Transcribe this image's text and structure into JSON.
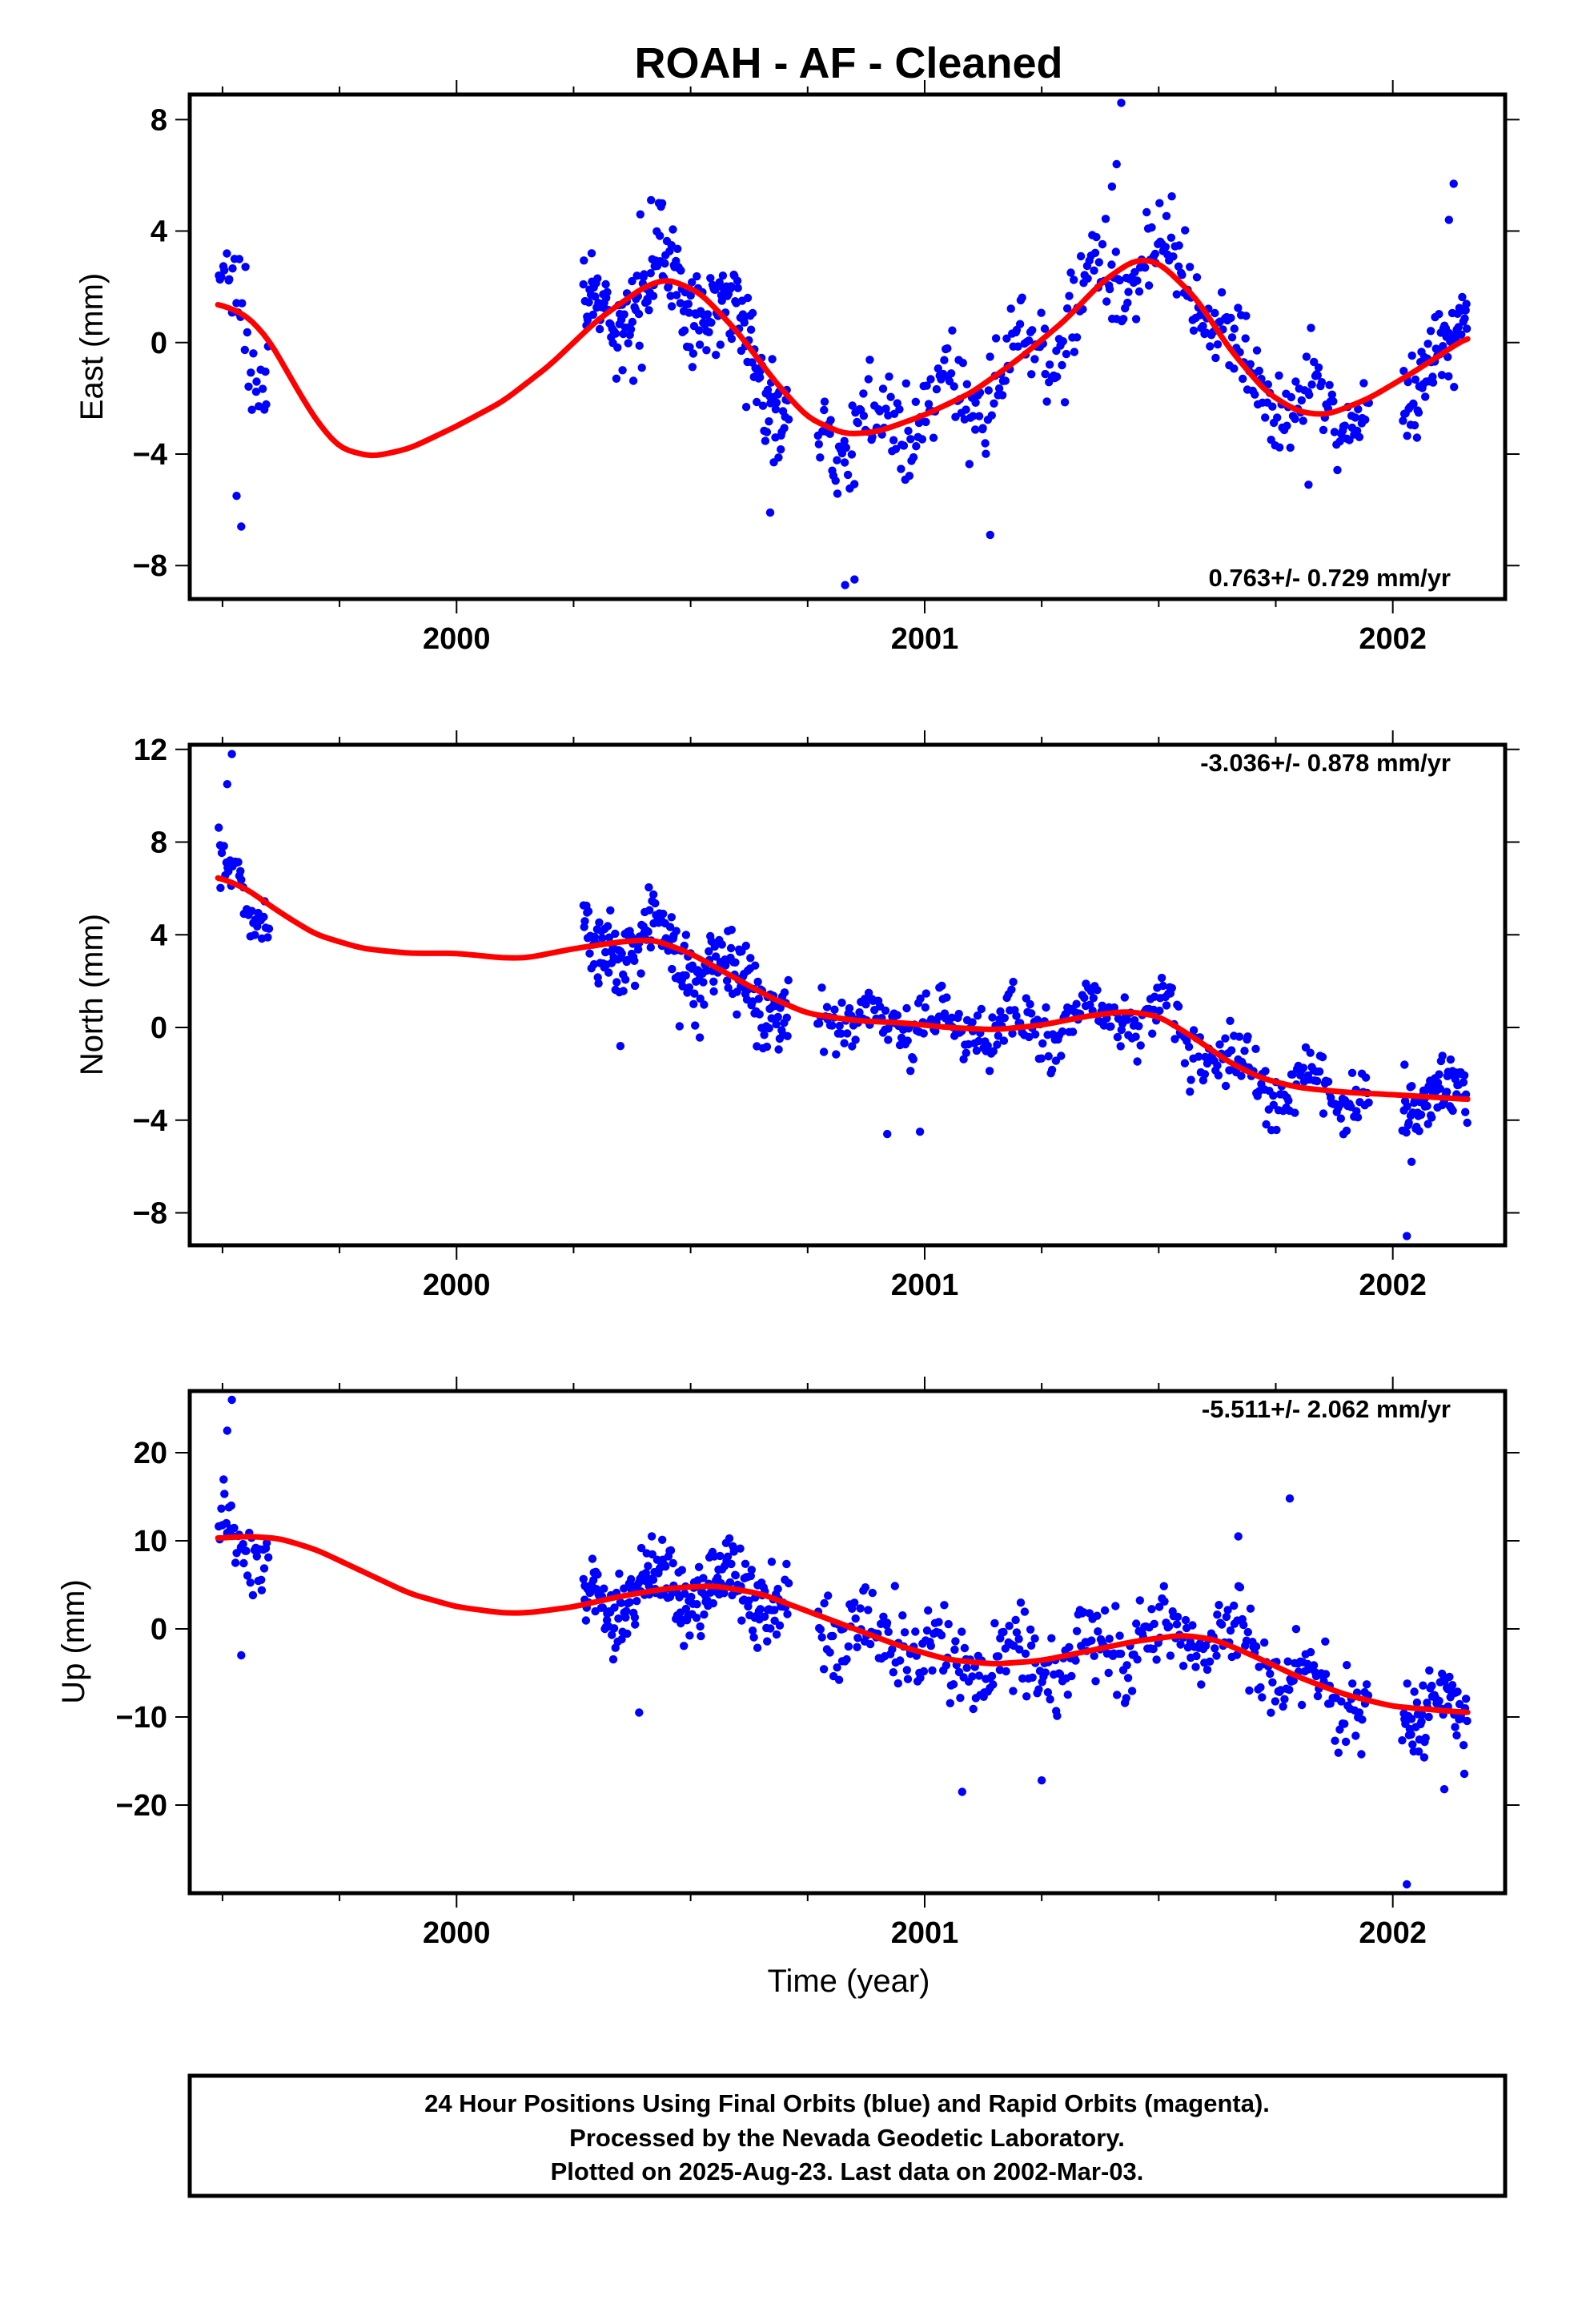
{
  "title": "ROAH  - AF - Cleaned",
  "xlabel": "Time (year)",
  "caption": [
    "24 Hour Positions Using Final Orbits (blue) and Rapid Orbits (magenta).",
    "Processed by the Nevada Geodetic Laboratory.",
    "Plotted on 2025-Aug-23. Last data on 2002-Mar-03."
  ],
  "colors": {
    "points": "#0000ff",
    "trend": "#ff0000",
    "frame": "#000000"
  },
  "chart_data": [
    {
      "type": "scatter",
      "ylabel": "East (mm)",
      "rate_text": "0.763+/- 0.729 mm/yr",
      "xlim": [
        1999.43,
        2002.24
      ],
      "ylim": [
        -9.2,
        8.9
      ],
      "x_ticks": [
        2000,
        2001,
        2002
      ],
      "y_ticks": [
        -8,
        -4,
        0,
        4,
        8
      ],
      "y_tick_labels": [
        "−8",
        "−4",
        "0",
        "4",
        "8"
      ],
      "trend": [
        [
          1999.49,
          1.4
        ],
        [
          1999.55,
          1.0
        ],
        [
          1999.6,
          0.1
        ],
        [
          1999.65,
          -1.4
        ],
        [
          1999.7,
          -2.8
        ],
        [
          1999.75,
          -3.8
        ],
        [
          1999.82,
          -4.1
        ],
        [
          1999.9,
          -3.8
        ],
        [
          2000.0,
          -3.0
        ],
        [
          2000.1,
          -2.1
        ],
        [
          2000.2,
          -0.8
        ],
        [
          2000.3,
          0.8
        ],
        [
          2000.4,
          2.0
        ],
        [
          2000.45,
          2.3
        ],
        [
          2000.52,
          1.8
        ],
        [
          2000.6,
          0.4
        ],
        [
          2000.68,
          -1.4
        ],
        [
          2000.75,
          -2.7
        ],
        [
          2000.83,
          -3.3
        ],
        [
          2000.9,
          -3.2
        ],
        [
          2001.0,
          -2.6
        ],
        [
          2001.1,
          -1.8
        ],
        [
          2001.2,
          -0.6
        ],
        [
          2001.3,
          0.8
        ],
        [
          2001.38,
          2.2
        ],
        [
          2001.45,
          3.0
        ],
        [
          2001.5,
          2.9
        ],
        [
          2001.58,
          1.6
        ],
        [
          2001.65,
          -0.2
        ],
        [
          2001.73,
          -1.8
        ],
        [
          2001.8,
          -2.5
        ],
        [
          2001.86,
          -2.6
        ],
        [
          2001.95,
          -2.0
        ],
        [
          2002.05,
          -1.0
        ],
        [
          2002.16,
          0.2
        ]
      ],
      "segments": [
        {
          "x0": 1999.49,
          "x1": 1999.6,
          "count": 32,
          "amp": 1.2,
          "ph": 0.0,
          "noise": 1.6,
          "out": [
            [
              1999.53,
              -5.5
            ],
            [
              1999.54,
              -6.6
            ]
          ]
        },
        {
          "x0": 2000.27,
          "x1": 2000.71,
          "count": 230,
          "amp": 1.3,
          "ph": 0.6,
          "noise": 1.4,
          "out": [
            [
              2000.67,
              -6.1
            ]
          ]
        },
        {
          "x0": 2000.77,
          "x1": 2001.95,
          "count": 380,
          "amp": 1.0,
          "ph": 1.2,
          "noise": 1.3,
          "out": [
            [
              2000.83,
              -8.7
            ],
            [
              2000.85,
              -8.5
            ],
            [
              2001.14,
              -6.9
            ],
            [
              2001.42,
              8.6
            ],
            [
              2001.41,
              6.4
            ],
            [
              2001.4,
              5.6
            ],
            [
              2001.82,
              -5.1
            ]
          ]
        },
        {
          "x0": 2002.02,
          "x1": 2002.16,
          "count": 70,
          "amp": 0.8,
          "ph": 2.0,
          "noise": 1.3,
          "out": [
            [
              2002.13,
              5.7
            ],
            [
              2002.12,
              4.4
            ]
          ]
        }
      ]
    },
    {
      "type": "scatter",
      "ylabel": "North (mm)",
      "rate_text": "-3.036+/- 0.878 mm/yr",
      "xlim": [
        1999.43,
        2002.24
      ],
      "ylim": [
        -9.4,
        12.2
      ],
      "x_ticks": [
        2000,
        2001,
        2002
      ],
      "y_ticks": [
        -8,
        -4,
        0,
        4,
        8,
        12
      ],
      "y_tick_labels": [
        "−8",
        "−4",
        "0",
        "4",
        "8",
        "12"
      ],
      "trend": [
        [
          1999.49,
          6.5
        ],
        [
          1999.55,
          6.0
        ],
        [
          1999.62,
          5.0
        ],
        [
          1999.7,
          4.0
        ],
        [
          1999.8,
          3.4
        ],
        [
          1999.9,
          3.2
        ],
        [
          2000.0,
          3.2
        ],
        [
          2000.1,
          3.0
        ],
        [
          2000.15,
          3.0
        ],
        [
          2000.25,
          3.4
        ],
        [
          2000.35,
          3.7
        ],
        [
          2000.42,
          3.8
        ],
        [
          2000.5,
          3.2
        ],
        [
          2000.58,
          2.3
        ],
        [
          2000.67,
          1.3
        ],
        [
          2000.75,
          0.6
        ],
        [
          2000.85,
          0.3
        ],
        [
          2000.95,
          0.2
        ],
        [
          2001.05,
          0.0
        ],
        [
          2001.15,
          -0.1
        ],
        [
          2001.25,
          0.1
        ],
        [
          2001.35,
          0.5
        ],
        [
          2001.43,
          0.7
        ],
        [
          2001.5,
          0.5
        ],
        [
          2001.58,
          -0.5
        ],
        [
          2001.65,
          -1.5
        ],
        [
          2001.72,
          -2.2
        ],
        [
          2001.8,
          -2.6
        ],
        [
          2001.9,
          -2.8
        ],
        [
          2002.0,
          -2.9
        ],
        [
          2002.16,
          -3.1
        ]
      ],
      "segments": [
        {
          "x0": 1999.49,
          "x1": 1999.6,
          "count": 40,
          "amp": 1.0,
          "ph": 0.3,
          "noise": 1.2,
          "out": [
            [
              1999.51,
              10.5
            ],
            [
              1999.52,
              11.8
            ]
          ]
        },
        {
          "x0": 2000.27,
          "x1": 2000.71,
          "count": 230,
          "amp": 0.8,
          "ph": 0.9,
          "noise": 1.4,
          "out": [
            [
              2000.35,
              -0.8
            ]
          ]
        },
        {
          "x0": 2000.77,
          "x1": 2001.95,
          "count": 380,
          "amp": 0.7,
          "ph": 1.5,
          "noise": 1.1,
          "out": [
            [
              2000.92,
              -4.6
            ],
            [
              2000.99,
              -4.5
            ]
          ]
        },
        {
          "x0": 2002.02,
          "x1": 2002.16,
          "count": 70,
          "amp": 0.6,
          "ph": 2.4,
          "noise": 1.2,
          "out": [
            [
              2002.04,
              -5.8
            ],
            [
              2002.03,
              -9.0
            ]
          ]
        }
      ]
    },
    {
      "type": "scatter",
      "ylabel": "Up (mm)",
      "rate_text": "-5.511+/- 2.062 mm/yr",
      "xlim": [
        1999.43,
        2002.24
      ],
      "ylim": [
        -30,
        27
      ],
      "x_ticks": [
        2000,
        2001,
        2002
      ],
      "y_ticks": [
        -20,
        -10,
        0,
        10,
        20
      ],
      "y_tick_labels": [
        "−20",
        "−10",
        "0",
        "10",
        "20"
      ],
      "trend": [
        [
          1999.49,
          10.3
        ],
        [
          1999.55,
          10.5
        ],
        [
          1999.62,
          10.3
        ],
        [
          1999.7,
          9.0
        ],
        [
          1999.8,
          6.5
        ],
        [
          1999.9,
          4.0
        ],
        [
          2000.0,
          2.5
        ],
        [
          2000.1,
          1.8
        ],
        [
          2000.15,
          1.8
        ],
        [
          2000.25,
          2.5
        ],
        [
          2000.35,
          3.7
        ],
        [
          2000.45,
          4.6
        ],
        [
          2000.55,
          4.9
        ],
        [
          2000.65,
          4.0
        ],
        [
          2000.75,
          2.0
        ],
        [
          2000.85,
          0.0
        ],
        [
          2000.95,
          -2.0
        ],
        [
          2001.05,
          -3.5
        ],
        [
          2001.15,
          -4.0
        ],
        [
          2001.25,
          -3.6
        ],
        [
          2001.35,
          -2.5
        ],
        [
          2001.45,
          -1.4
        ],
        [
          2001.55,
          -0.7
        ],
        [
          2001.62,
          -1.2
        ],
        [
          2001.7,
          -3.0
        ],
        [
          2001.8,
          -5.5
        ],
        [
          2001.9,
          -7.5
        ],
        [
          2002.0,
          -8.8
        ],
        [
          2002.16,
          -9.5
        ]
      ],
      "segments": [
        {
          "x0": 1999.49,
          "x1": 1999.6,
          "count": 40,
          "amp": 2.5,
          "ph": 0.5,
          "noise": 3.4,
          "out": [
            [
              1999.51,
              22.5
            ],
            [
              1999.52,
              26.0
            ],
            [
              1999.54,
              -3.0
            ]
          ]
        },
        {
          "x0": 2000.27,
          "x1": 2000.71,
          "count": 230,
          "amp": 2.0,
          "ph": 1.1,
          "noise": 3.6,
          "out": [
            [
              2000.39,
              -9.5
            ]
          ]
        },
        {
          "x0": 2000.77,
          "x1": 2001.95,
          "count": 380,
          "amp": 1.8,
          "ph": 1.7,
          "noise": 3.8,
          "out": [
            [
              2001.08,
              -18.5
            ],
            [
              2001.25,
              -17.2
            ],
            [
              2001.78,
              14.8
            ],
            [
              2001.67,
              10.5
            ]
          ]
        },
        {
          "x0": 2002.02,
          "x1": 2002.16,
          "count": 70,
          "amp": 1.5,
          "ph": 2.6,
          "noise": 3.4,
          "out": [
            [
              2002.03,
              -29.0
            ],
            [
              2002.11,
              -18.2
            ]
          ]
        }
      ]
    }
  ]
}
